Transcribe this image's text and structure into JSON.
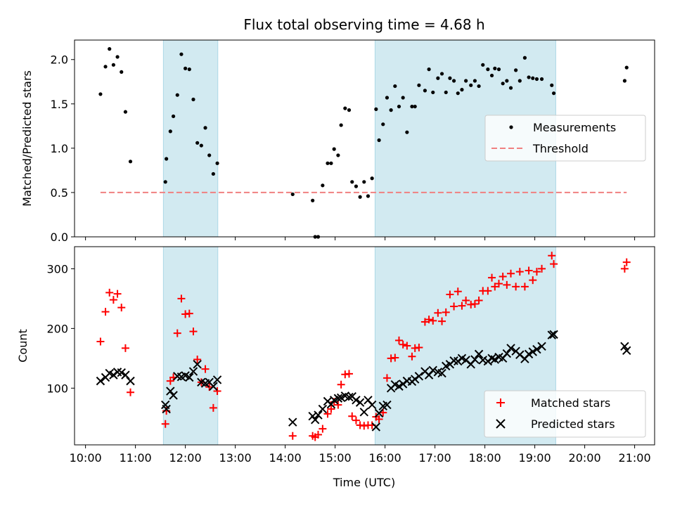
{
  "title": "Flux total observing time = 4.68 h",
  "colors": {
    "measurement": "#000000",
    "threshold": "#f08080",
    "matched": "#ff0000",
    "predicted": "#000000",
    "shade": "#add8e6"
  },
  "chart_data": [
    {
      "type": "scatter",
      "ylabel": "Matched/Predicted stars",
      "xlim": [
        9.78,
        21.4
      ],
      "ylim": [
        0,
        2.22
      ],
      "yticks": [
        0.0,
        0.5,
        1.0,
        1.5,
        2.0
      ],
      "ytick_labels": [
        "0.0",
        "0.5",
        "1.0",
        "1.5",
        "2.0"
      ],
      "shaded_intervals": [
        [
          11.56,
          12.65
        ],
        [
          15.8,
          19.42
        ]
      ],
      "legend": {
        "position": "center-right",
        "entries": [
          "Measurements",
          "Threshold"
        ]
      },
      "series": [
        {
          "name": "Measurements",
          "marker": "dot",
          "x": [
            10.3,
            10.4,
            10.48,
            10.56,
            10.64,
            10.72,
            10.8,
            10.9,
            11.6,
            11.62,
            11.7,
            11.76,
            11.84,
            11.92,
            12.0,
            12.08,
            12.16,
            12.24,
            12.32,
            12.4,
            12.48,
            12.56,
            12.64,
            14.15,
            14.55,
            14.6,
            14.66,
            14.75,
            14.85,
            14.92,
            14.98,
            15.06,
            15.12,
            15.2,
            15.28,
            15.34,
            15.42,
            15.5,
            15.58,
            15.66,
            15.74,
            15.82,
            15.88,
            15.96,
            16.04,
            16.12,
            16.2,
            16.28,
            16.36,
            16.44,
            16.54,
            16.6,
            16.68,
            16.8,
            16.88,
            16.96,
            17.06,
            17.14,
            17.22,
            17.3,
            17.38,
            17.46,
            17.54,
            17.62,
            17.72,
            17.8,
            17.88,
            17.96,
            18.06,
            18.14,
            18.2,
            18.28,
            18.36,
            18.44,
            18.52,
            18.62,
            18.7,
            18.8,
            18.88,
            18.96,
            19.04,
            19.14,
            19.34,
            19.38,
            20.8,
            20.84
          ],
          "y": [
            1.61,
            1.92,
            2.12,
            1.94,
            2.03,
            1.86,
            1.41,
            0.85,
            0.62,
            0.88,
            1.19,
            1.36,
            1.6,
            2.06,
            1.9,
            1.89,
            1.55,
            1.06,
            1.03,
            1.23,
            0.92,
            0.71,
            0.83,
            0.48,
            0.41,
            0.0,
            0.0,
            0.58,
            0.83,
            0.83,
            0.99,
            0.92,
            1.26,
            1.45,
            1.43,
            0.62,
            0.57,
            0.45,
            0.62,
            0.46,
            0.66,
            1.44,
            1.09,
            1.27,
            1.57,
            1.43,
            1.7,
            1.47,
            1.57,
            1.18,
            1.47,
            1.47,
            1.71,
            1.65,
            1.89,
            1.63,
            1.79,
            1.84,
            1.63,
            1.79,
            1.76,
            1.62,
            1.66,
            1.76,
            1.71,
            1.76,
            1.7,
            1.94,
            1.89,
            1.82,
            1.9,
            1.89,
            1.73,
            1.76,
            1.68,
            1.88,
            1.76,
            2.02,
            1.8,
            1.79,
            1.78,
            1.78,
            1.71,
            1.62,
            1.76,
            1.91
          ]
        },
        {
          "name": "Threshold",
          "style": "dashed",
          "x": [
            10.3,
            20.84
          ],
          "y": [
            0.5,
            0.5
          ]
        }
      ]
    },
    {
      "type": "scatter",
      "xlabel": "Time (UTC)",
      "ylabel": "Count",
      "xlim": [
        9.78,
        21.4
      ],
      "ylim": [
        5,
        337
      ],
      "yticks": [
        100,
        200,
        300
      ],
      "ytick_labels": [
        "100",
        "200",
        "300"
      ],
      "xticks": [
        10,
        11,
        12,
        13,
        14,
        15,
        16,
        17,
        18,
        19,
        20,
        21
      ],
      "xtick_labels": [
        "10:00",
        "11:00",
        "12:00",
        "13:00",
        "14:00",
        "15:00",
        "16:00",
        "17:00",
        "18:00",
        "19:00",
        "20:00",
        "21:00"
      ],
      "shaded_intervals": [
        [
          11.56,
          12.65
        ],
        [
          15.8,
          19.42
        ]
      ],
      "legend": {
        "position": "bottom-right",
        "entries": [
          "Matched stars",
          "Predicted stars"
        ]
      },
      "series": [
        {
          "name": "Matched stars",
          "marker": "plus",
          "x": [
            10.3,
            10.4,
            10.48,
            10.56,
            10.64,
            10.72,
            10.8,
            10.9,
            11.6,
            11.62,
            11.7,
            11.76,
            11.84,
            11.92,
            12.0,
            12.08,
            12.16,
            12.24,
            12.32,
            12.4,
            12.48,
            12.56,
            12.64,
            14.15,
            14.55,
            14.6,
            14.66,
            14.75,
            14.85,
            14.92,
            14.98,
            15.06,
            15.12,
            15.2,
            15.28,
            15.34,
            15.42,
            15.5,
            15.58,
            15.66,
            15.74,
            15.82,
            15.88,
            15.96,
            16.04,
            16.12,
            16.2,
            16.28,
            16.36,
            16.44,
            16.54,
            16.6,
            16.68,
            16.8,
            16.88,
            16.96,
            17.06,
            17.14,
            17.22,
            17.3,
            17.38,
            17.46,
            17.54,
            17.62,
            17.72,
            17.8,
            17.88,
            17.96,
            18.06,
            18.14,
            18.2,
            18.28,
            18.36,
            18.44,
            18.52,
            18.62,
            18.7,
            18.8,
            18.88,
            18.96,
            19.04,
            19.14,
            19.34,
            19.38,
            20.8,
            20.84
          ],
          "y": [
            178,
            228,
            260,
            248,
            258,
            235,
            167,
            93,
            40,
            62,
            112,
            118,
            192,
            250,
            224,
            225,
            195,
            148,
            110,
            132,
            102,
            67,
            95,
            20,
            20,
            18,
            22,
            32,
            57,
            65,
            77,
            72,
            106,
            123,
            124,
            53,
            46,
            38,
            37,
            38,
            38,
            52,
            48,
            59,
            117,
            150,
            151,
            180,
            173,
            171,
            153,
            167,
            168,
            211,
            215,
            213,
            226,
            212,
            227,
            257,
            237,
            262,
            238,
            247,
            240,
            241,
            247,
            263,
            263,
            285,
            270,
            275,
            287,
            273,
            292,
            270,
            295,
            270,
            297,
            281,
            295,
            300,
            322,
            308,
            300,
            311
          ]
        },
        {
          "name": "Predicted stars",
          "marker": "x",
          "x": [
            10.3,
            10.4,
            10.48,
            10.56,
            10.64,
            10.72,
            10.8,
            10.9,
            11.6,
            11.62,
            11.7,
            11.76,
            11.84,
            11.92,
            12.0,
            12.08,
            12.16,
            12.24,
            12.32,
            12.4,
            12.48,
            12.56,
            12.64,
            14.15,
            14.55,
            14.6,
            14.66,
            14.75,
            14.85,
            14.92,
            14.98,
            15.06,
            15.12,
            15.2,
            15.28,
            15.34,
            15.42,
            15.5,
            15.58,
            15.66,
            15.74,
            15.82,
            15.88,
            15.96,
            16.04,
            16.12,
            16.2,
            16.28,
            16.36,
            16.44,
            16.54,
            16.6,
            16.68,
            16.8,
            16.88,
            16.96,
            17.06,
            17.14,
            17.22,
            17.3,
            17.38,
            17.46,
            17.54,
            17.62,
            17.72,
            17.8,
            17.88,
            17.96,
            18.06,
            18.14,
            18.2,
            18.28,
            18.36,
            18.44,
            18.52,
            18.62,
            18.7,
            18.8,
            18.88,
            18.96,
            19.04,
            19.14,
            19.34,
            19.38,
            20.8,
            20.84
          ],
          "y": [
            112,
            118,
            125,
            122,
            127,
            126,
            122,
            112,
            72,
            65,
            95,
            88,
            120,
            119,
            121,
            118,
            128,
            140,
            110,
            108,
            110,
            103,
            114,
            43,
            53,
            47,
            55,
            65,
            78,
            73,
            80,
            83,
            84,
            87,
            85,
            86,
            80,
            76,
            60,
            80,
            72,
            35,
            58,
            70,
            72,
            100,
            106,
            103,
            107,
            112,
            111,
            115,
            120,
            128,
            122,
            130,
            127,
            125,
            137,
            140,
            146,
            145,
            150,
            147,
            140,
            148,
            157,
            147,
            145,
            150,
            148,
            152,
            150,
            158,
            167,
            162,
            156,
            149,
            157,
            161,
            165,
            170,
            189,
            190,
            170,
            163
          ]
        }
      ]
    }
  ]
}
